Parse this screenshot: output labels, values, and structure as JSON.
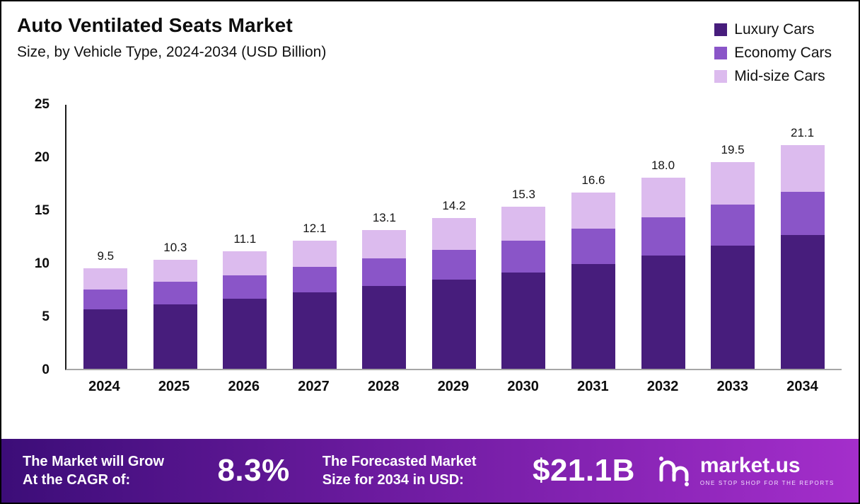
{
  "header": {
    "title": "Auto Ventilated Seats Market",
    "subtitle": "Size, by Vehicle Type, 2024-2034 (USD Billion)"
  },
  "legend": [
    {
      "label": "Luxury Cars",
      "color": "#471d7c"
    },
    {
      "label": "Economy Cars",
      "color": "#8a55c8"
    },
    {
      "label": "Mid-size Cars",
      "color": "#dcbbee"
    }
  ],
  "chart_data": {
    "type": "bar",
    "stacked": true,
    "title": "Auto Ventilated Seats Market Size, by Vehicle Type, 2024-2034 (USD Billion)",
    "categories": [
      "2024",
      "2025",
      "2026",
      "2027",
      "2028",
      "2029",
      "2030",
      "2031",
      "2032",
      "2033",
      "2034"
    ],
    "series": [
      {
        "name": "Luxury Cars",
        "color": "#471d7c",
        "values": [
          5.6,
          6.1,
          6.6,
          7.2,
          7.8,
          8.4,
          9.1,
          9.9,
          10.7,
          11.6,
          12.6
        ]
      },
      {
        "name": "Economy Cars",
        "color": "#8a55c8",
        "values": [
          1.9,
          2.1,
          2.2,
          2.4,
          2.6,
          2.8,
          3.0,
          3.3,
          3.6,
          3.9,
          4.1
        ]
      },
      {
        "name": "Mid-size Cars",
        "color": "#dcbbee",
        "values": [
          2.0,
          2.1,
          2.3,
          2.5,
          2.7,
          3.0,
          3.2,
          3.4,
          3.7,
          4.0,
          4.4
        ]
      }
    ],
    "totals": [
      9.5,
      10.3,
      11.1,
      12.1,
      13.1,
      14.2,
      15.3,
      16.6,
      18.0,
      19.5,
      21.1
    ],
    "xlabel": "",
    "ylabel": "",
    "ylim": [
      0,
      25
    ],
    "yticks": [
      0,
      5,
      10,
      15,
      20,
      25
    ],
    "grid": false,
    "legend_position": "top-right"
  },
  "banner": {
    "cagr_label_line1": "The Market will Grow",
    "cagr_label_line2": "At the CAGR of:",
    "cagr_value": "8.3%",
    "forecast_label_line1": "The Forecasted Market",
    "forecast_label_line2": "Size for 2034 in USD:",
    "forecast_value": "$21.1B",
    "brand_name": "market.us",
    "brand_tagline": "ONE STOP SHOP FOR THE REPORTS"
  }
}
